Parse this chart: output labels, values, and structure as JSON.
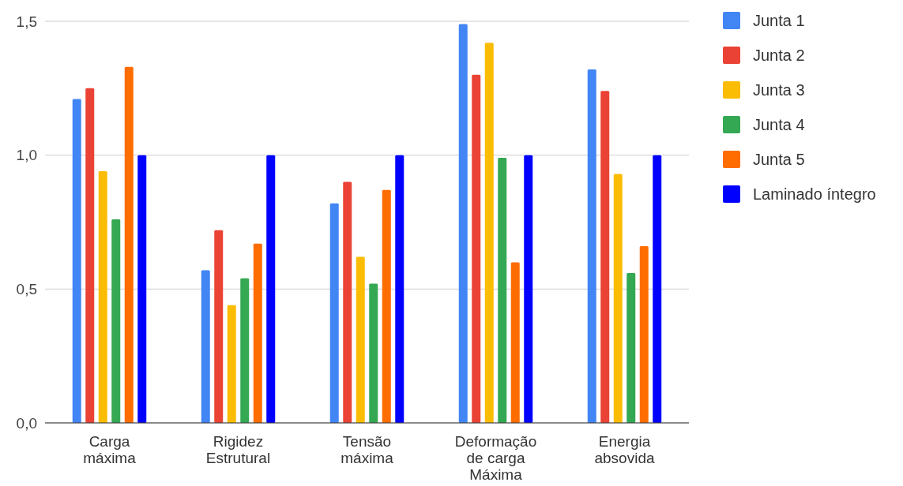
{
  "chart_data": {
    "type": "bar",
    "categories": [
      "Carga máxima",
      "Rigidez Estrutural",
      "Tensão máxima",
      "Deformação de carga Máxima",
      "Energia absovida"
    ],
    "series": [
      {
        "name": "Junta 1",
        "color": "#4285f4",
        "values": [
          1.21,
          0.57,
          0.82,
          1.49,
          1.32
        ]
      },
      {
        "name": "Junta 2",
        "color": "#ea4335",
        "values": [
          1.25,
          0.72,
          0.9,
          1.3,
          1.24
        ]
      },
      {
        "name": "Junta 3",
        "color": "#fbbc04",
        "values": [
          0.94,
          0.44,
          0.62,
          1.42,
          0.93
        ]
      },
      {
        "name": "Junta 4",
        "color": "#34a853",
        "values": [
          0.76,
          0.54,
          0.52,
          0.99,
          0.56
        ]
      },
      {
        "name": "Junta 5",
        "color": "#ff6d01",
        "values": [
          1.33,
          0.67,
          0.87,
          0.6,
          0.66
        ]
      },
      {
        "name": "Laminado íntegro",
        "color": "#0000ff",
        "values": [
          1.0,
          1.0,
          1.0,
          1.0,
          1.0
        ]
      }
    ],
    "ylim": [
      0,
      1.5
    ],
    "yticks": [
      {
        "value": 0,
        "label": "0,0"
      },
      {
        "value": 0.5,
        "label": "0,5"
      },
      {
        "value": 1,
        "label": "1,0"
      },
      {
        "value": 1.5,
        "label": "1,5"
      }
    ],
    "grid": "y",
    "legend": "right"
  }
}
